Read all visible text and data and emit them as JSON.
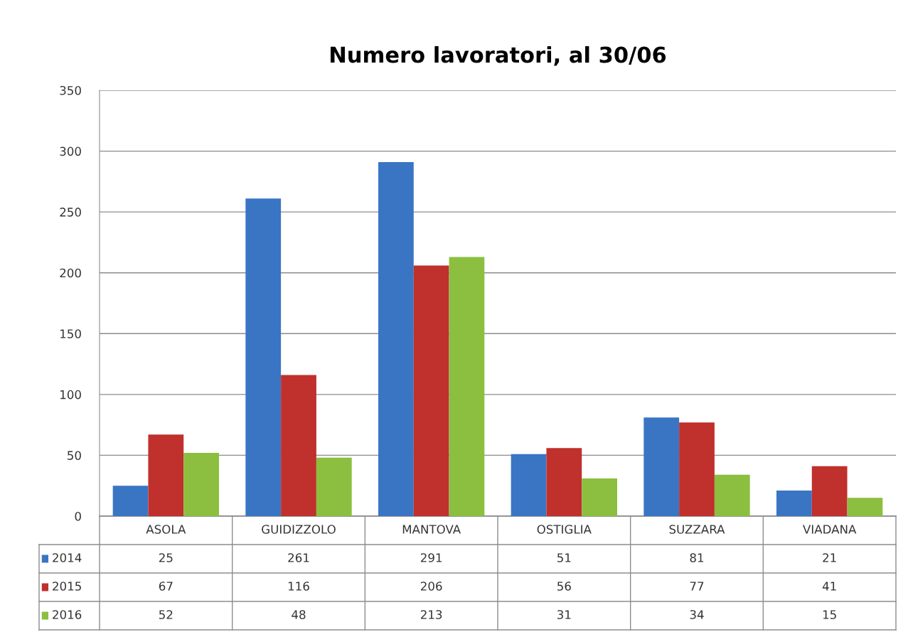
{
  "chart_data": {
    "type": "bar",
    "title": "Numero lavoratori, al 30/06",
    "categories": [
      "ASOLA",
      "GUIDIZZOLO",
      "MANTOVA",
      "OSTIGLIA",
      "SUZZARA",
      "VIADANA"
    ],
    "series": [
      {
        "name": "2014",
        "color": "#3a75c4",
        "values": [
          25,
          261,
          291,
          51,
          81,
          21
        ]
      },
      {
        "name": "2015",
        "color": "#c0302c",
        "values": [
          67,
          116,
          206,
          56,
          77,
          41
        ]
      },
      {
        "name": "2016",
        "color": "#8cbf3f",
        "values": [
          52,
          48,
          213,
          31,
          34,
          15
        ]
      }
    ],
    "ylim": [
      0,
      350
    ],
    "yticks": [
      0,
      50,
      100,
      150,
      200,
      250,
      300,
      350
    ],
    "grid": "y",
    "data_labels": true,
    "legend": "bottom left"
  }
}
